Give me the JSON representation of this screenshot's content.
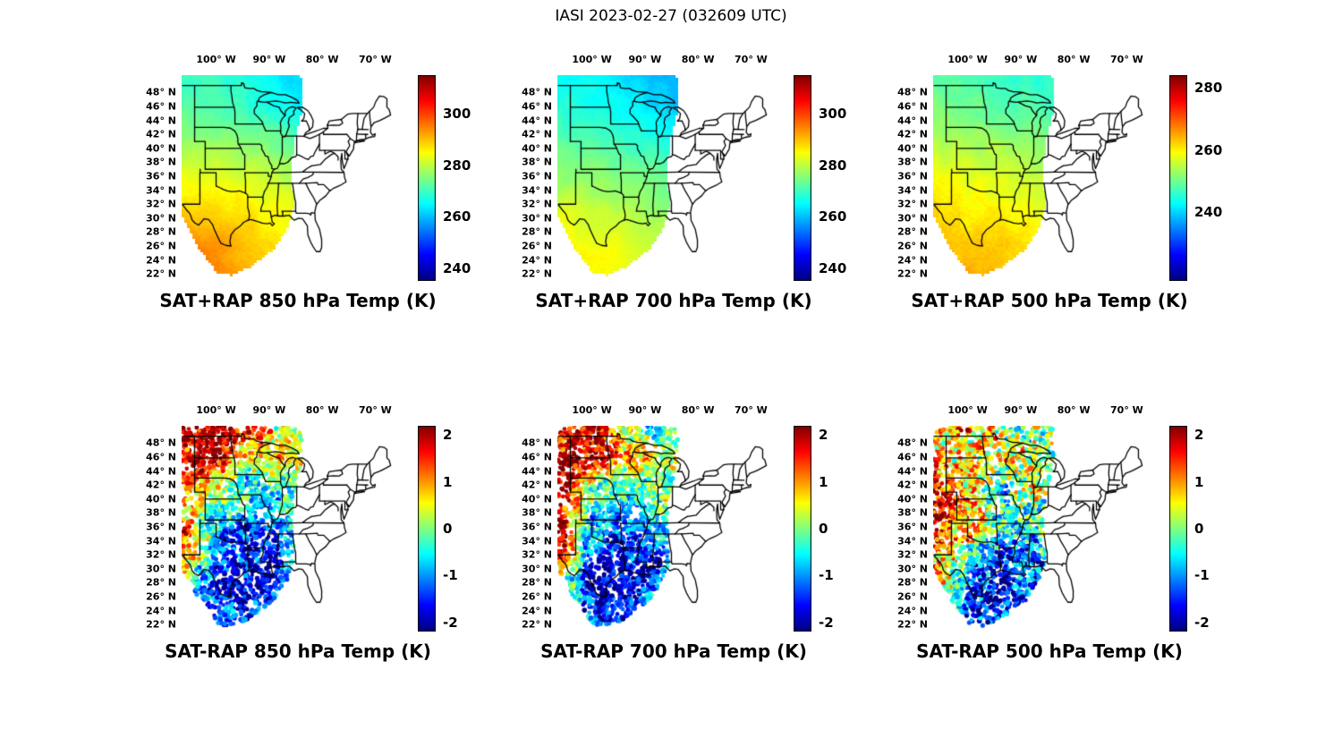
{
  "figure_title": "IASI 2023-02-27 (032609 UTC)",
  "axes": {
    "lon_ticks": [
      "100° W",
      "90° W",
      "80° W",
      "70° W"
    ],
    "lon_values": [
      -100,
      -90,
      -80,
      -70
    ],
    "lat_ticks": [
      "48° N",
      "46° N",
      "44° N",
      "42° N",
      "40° N",
      "38° N",
      "36° N",
      "34° N",
      "32° N",
      "30° N",
      "28° N",
      "26° N",
      "24° N",
      "22° N"
    ],
    "lat_values": [
      48,
      46,
      44,
      42,
      40,
      38,
      36,
      34,
      32,
      30,
      28,
      26,
      24,
      22
    ]
  },
  "panels": [
    {
      "id": "sat-plus-rap-850",
      "kind": "field",
      "title": "SAT+RAP 850 hPa Temp (K)",
      "colorbar": {
        "range": [
          235,
          315
        ],
        "ticks": [
          {
            "label": "300",
            "value": 300
          },
          {
            "label": "280",
            "value": 280
          },
          {
            "label": "260",
            "value": 260
          },
          {
            "label": "240",
            "value": 240
          }
        ]
      }
    },
    {
      "id": "sat-plus-rap-700",
      "kind": "field",
      "title": "SAT+RAP 700 hPa Temp (K)",
      "colorbar": {
        "range": [
          235,
          315
        ],
        "ticks": [
          {
            "label": "300",
            "value": 300
          },
          {
            "label": "280",
            "value": 280
          },
          {
            "label": "260",
            "value": 260
          },
          {
            "label": "240",
            "value": 240
          }
        ]
      }
    },
    {
      "id": "sat-plus-rap-500",
      "kind": "field",
      "title": "SAT+RAP 500 hPa Temp (K)",
      "colorbar": {
        "range": [
          218,
          284
        ],
        "ticks": [
          {
            "label": "280",
            "value": 280
          },
          {
            "label": "260",
            "value": 260
          },
          {
            "label": "240",
            "value": 240
          }
        ]
      }
    },
    {
      "id": "sat-minus-rap-850",
      "kind": "dots",
      "title": "SAT-RAP 850 hPa Temp (K)",
      "colorbar": {
        "range": [
          -2.2,
          2.2
        ],
        "ticks": [
          {
            "label": "2",
            "value": 2
          },
          {
            "label": "1",
            "value": 1
          },
          {
            "label": "0",
            "value": 0
          },
          {
            "label": "-1",
            "value": -1
          },
          {
            "label": "-2",
            "value": -2
          }
        ]
      }
    },
    {
      "id": "sat-minus-rap-700",
      "kind": "dots",
      "title": "SAT-RAP 700 hPa Temp (K)",
      "colorbar": {
        "range": [
          -2.2,
          2.2
        ],
        "ticks": [
          {
            "label": "2",
            "value": 2
          },
          {
            "label": "1",
            "value": 1
          },
          {
            "label": "0",
            "value": 0
          },
          {
            "label": "-1",
            "value": -1
          },
          {
            "label": "-2",
            "value": -2
          }
        ]
      }
    },
    {
      "id": "sat-minus-rap-500",
      "kind": "dots",
      "title": "SAT-RAP 500 hPa Temp (K)",
      "colorbar": {
        "range": [
          -2.2,
          2.2
        ],
        "ticks": [
          {
            "label": "2",
            "value": 2
          },
          {
            "label": "1",
            "value": 1
          },
          {
            "label": "0",
            "value": 0
          },
          {
            "label": "-1",
            "value": -1
          },
          {
            "label": "-2",
            "value": -2
          }
        ]
      }
    }
  ],
  "chart_data": [
    {
      "type": "heatmap",
      "title": "SAT+RAP 850 hPa Temp (K)",
      "units": "K",
      "colormap": "jet",
      "x_ticks": [
        "100° W",
        "90° W",
        "80° W",
        "70° W"
      ],
      "xlim_lon": [
        -106.5,
        -64
      ],
      "ylim_lat": [
        21,
        50.5
      ],
      "colorbar_ticks": [
        300,
        280,
        260,
        240
      ],
      "colorbar_range": [
        235,
        315
      ],
      "grid": {
        "lons": [
          -106,
          -100,
          -94,
          -88,
          -82
        ],
        "lats": [
          50,
          46,
          42,
          38,
          34,
          30,
          26,
          22
        ],
        "values": [
          [
            270,
            269,
            267,
            264,
            261
          ],
          [
            272,
            271,
            269,
            266,
            263
          ],
          [
            276,
            275,
            274,
            272,
            268
          ],
          [
            281,
            280,
            279,
            277,
            274
          ],
          [
            285,
            285,
            284,
            282,
            279
          ],
          [
            290,
            289,
            287,
            285,
            283
          ],
          [
            296,
            294,
            290,
            287,
            285
          ],
          [
            297,
            295,
            291,
            288,
            286
          ]
        ]
      },
      "summary": "Warmest air (~295 K) over south Texas and the Gulf; ~270-275 K across the northern plains; coolest (~262 K) near the upper Great Lakes."
    },
    {
      "type": "heatmap",
      "title": "SAT+RAP 700 hPa Temp (K)",
      "units": "K",
      "colormap": "jet",
      "x_ticks": [
        "100° W",
        "90° W",
        "80° W",
        "70° W"
      ],
      "xlim_lon": [
        -106.5,
        -64
      ],
      "ylim_lat": [
        21,
        50.5
      ],
      "colorbar_ticks": [
        300,
        280,
        260,
        240
      ],
      "colorbar_range": [
        235,
        315
      ],
      "grid": {
        "lons": [
          -106,
          -100,
          -94,
          -88,
          -82
        ],
        "lats": [
          50,
          46,
          42,
          38,
          34,
          30,
          26,
          22
        ],
        "values": [
          [
            266,
            265,
            263,
            260,
            258
          ],
          [
            268,
            267,
            265,
            262,
            260
          ],
          [
            271,
            270,
            269,
            267,
            264
          ],
          [
            275,
            274,
            273,
            271,
            269
          ],
          [
            279,
            278,
            277,
            275,
            273
          ],
          [
            283,
            282,
            280,
            278,
            276
          ],
          [
            286,
            285,
            283,
            280,
            278
          ],
          [
            287,
            286,
            284,
            281,
            279
          ]
        ]
      },
      "summary": "Temperatures ~285 K along the Gulf coast decreasing to ~260 K over the far north."
    },
    {
      "type": "heatmap",
      "title": "SAT+RAP 500 hPa Temp (K)",
      "units": "K",
      "colormap": "jet",
      "x_ticks": [
        "100° W",
        "90° W",
        "80° W",
        "70° W"
      ],
      "xlim_lon": [
        -106.5,
        -64
      ],
      "ylim_lat": [
        21,
        50.5
      ],
      "colorbar_ticks": [
        280,
        260,
        240
      ],
      "colorbar_range": [
        218,
        284
      ],
      "grid": {
        "lons": [
          -106,
          -100,
          -94,
          -88,
          -82
        ],
        "lats": [
          50,
          46,
          42,
          38,
          34,
          30,
          26,
          22
        ],
        "values": [
          [
            249,
            248,
            247,
            246,
            245
          ],
          [
            251,
            250,
            249,
            248,
            247
          ],
          [
            254,
            253,
            252,
            251,
            250
          ],
          [
            257,
            256,
            255,
            254,
            253
          ],
          [
            260,
            259,
            258,
            257,
            256
          ],
          [
            262,
            261,
            260,
            259,
            258
          ],
          [
            264,
            263,
            262,
            261,
            260
          ],
          [
            265,
            264,
            263,
            262,
            261
          ]
        ]
      },
      "summary": "Temperatures ~263 K in the south decreasing to ~247 K in the north."
    },
    {
      "type": "scatter",
      "title": "SAT-RAP 850 hPa Temp (K)",
      "units": "K",
      "colormap": "jet",
      "x_ticks": [
        "100° W",
        "90° W",
        "80° W",
        "70° W"
      ],
      "xlim_lon": [
        -106.5,
        -64
      ],
      "ylim_lat": [
        21,
        50.5
      ],
      "colorbar_ticks": [
        2,
        1,
        0,
        -1,
        -2
      ],
      "colorbar_range": [
        -2.2,
        2.2
      ],
      "dot_noise": 1.3,
      "grid": {
        "lons": [
          -106,
          -100,
          -94,
          -88,
          -82
        ],
        "lats": [
          50,
          46,
          42,
          38,
          34,
          30,
          26,
          22
        ],
        "values": [
          [
            2,
            2,
            1.5,
            0.5,
            -0.5
          ],
          [
            2,
            1.8,
            0.5,
            1.5,
            0.3
          ],
          [
            1.2,
            0.3,
            -0.8,
            -0.5,
            0.2
          ],
          [
            0.8,
            -0.3,
            -1.2,
            -0.8,
            0
          ],
          [
            1.8,
            -0.8,
            -1.5,
            -1.2,
            -0.3
          ],
          [
            0.5,
            -1.5,
            -1.8,
            -1.5,
            -0.5
          ],
          [
            -0.5,
            -1.6,
            -1.8,
            -1.5,
            0
          ],
          [
            -0.8,
            -1.5,
            -1.6,
            -1,
            0
          ]
        ]
      },
      "summary": "SAT warmer than RAP (+1 to +2 K) over the northern plains and far west; SAT colder (-1 to -2 K) over the lower Mississippi valley and Gulf region."
    },
    {
      "type": "scatter",
      "title": "SAT-RAP 700 hPa Temp (K)",
      "units": "K",
      "colormap": "jet",
      "x_ticks": [
        "100° W",
        "90° W",
        "80° W",
        "70° W"
      ],
      "xlim_lon": [
        -106.5,
        -64
      ],
      "ylim_lat": [
        21,
        50.5
      ],
      "colorbar_ticks": [
        2,
        1,
        0,
        -1,
        -2
      ],
      "colorbar_range": [
        -2.2,
        2.2
      ],
      "dot_noise": 1.3,
      "grid": {
        "lons": [
          -106,
          -100,
          -94,
          -88,
          -82
        ],
        "lats": [
          50,
          46,
          42,
          38,
          34,
          30,
          26,
          22
        ],
        "values": [
          [
            1.5,
            2,
            0.5,
            -0.5,
            0
          ],
          [
            2,
            2,
            1,
            0.5,
            0.5
          ],
          [
            2,
            0.5,
            -0.5,
            0,
            0.3
          ],
          [
            2,
            -0.5,
            -1,
            -0.5,
            0
          ],
          [
            2,
            -1,
            -1.5,
            -1,
            -0.5
          ],
          [
            1,
            -1.8,
            -2,
            -1.5,
            1.5
          ],
          [
            0,
            -1.8,
            -1.8,
            -1,
            2
          ],
          [
            0,
            -1.5,
            -1.5,
            -0.5,
            1
          ]
        ]
      },
      "summary": "Large warm differences (+2 K) along the western edge and far north; widespread cold differences (-2 K) across the south; warm cluster near the Florida panhandle."
    },
    {
      "type": "scatter",
      "title": "SAT-RAP 500 hPa Temp (K)",
      "units": "K",
      "colormap": "jet",
      "x_ticks": [
        "100° W",
        "90° W",
        "80° W",
        "70° W"
      ],
      "xlim_lon": [
        -106.5,
        -64
      ],
      "ylim_lat": [
        21,
        50.5
      ],
      "colorbar_ticks": [
        2,
        1,
        0,
        -1,
        -2
      ],
      "colorbar_range": [
        -2.2,
        2.2
      ],
      "dot_noise": 1.9,
      "grid": {
        "lons": [
          -106,
          -100,
          -94,
          -88,
          -82
        ],
        "lats": [
          50,
          46,
          42,
          38,
          34,
          30,
          26,
          22
        ],
        "values": [
          [
            0.5,
            1,
            0.5,
            -0.3,
            0.5
          ],
          [
            1,
            0.5,
            0.8,
            0.5,
            -0.5
          ],
          [
            2,
            1,
            -0.3,
            0.5,
            0.3
          ],
          [
            2,
            1.2,
            -0.5,
            -0.3,
            0.5
          ],
          [
            1.8,
            0.5,
            -1,
            -0.8,
            -0.3
          ],
          [
            1,
            -1.2,
            -2,
            -1.5,
            -0.8
          ],
          [
            0.5,
            -1.5,
            -2,
            -1.2,
            -0.5
          ],
          [
            0,
            -1.2,
            -1.8,
            -1,
            -0.5
          ]
        ]
      },
      "summary": "Mixed speckled differences; warm band (+2 K) along the west edge, cold pool (-2 K) over the Gulf coast region."
    }
  ]
}
